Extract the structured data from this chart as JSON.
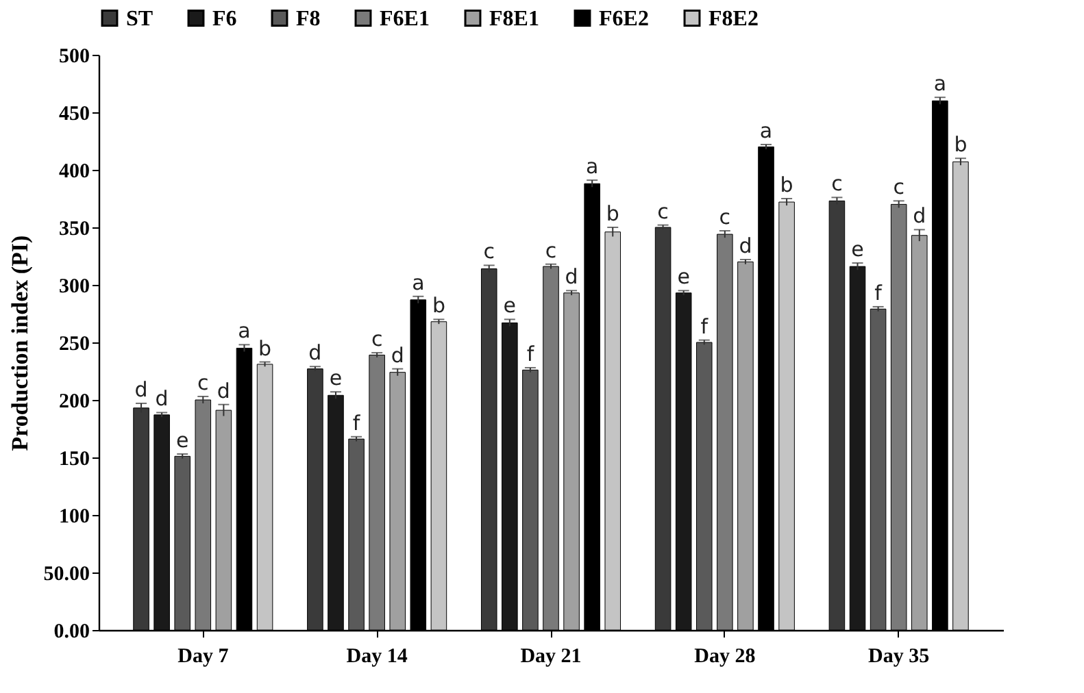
{
  "chart_data": {
    "type": "bar",
    "ylabel": "Production index (PI)",
    "categories": [
      "Day 7",
      "Day 14",
      "Day 21",
      "Day 28",
      "Day 35"
    ],
    "series": [
      {
        "name": "ST",
        "color": "#3a3a3a",
        "values": [
          193,
          227,
          314,
          350,
          373
        ],
        "errors": [
          4,
          2,
          3,
          2,
          3
        ],
        "value_labels": [
          "d",
          "d",
          "c",
          "c",
          "c"
        ]
      },
      {
        "name": "F6",
        "color": "#1a1a1a",
        "values": [
          187,
          204,
          267,
          293,
          316
        ],
        "errors": [
          2,
          3,
          3,
          2,
          3
        ],
        "value_labels": [
          "d",
          "e",
          "e",
          "e",
          "e"
        ]
      },
      {
        "name": "F8",
        "color": "#5a5a5a",
        "values": [
          151,
          166,
          226,
          250,
          279
        ],
        "errors": [
          2,
          2,
          2,
          2,
          2
        ],
        "value_labels": [
          "e",
          "f",
          "f",
          "f",
          "f"
        ]
      },
      {
        "name": "F6E1",
        "color": "#7a7a7a",
        "values": [
          200,
          239,
          316,
          344,
          370
        ],
        "errors": [
          3,
          2,
          2,
          3,
          3
        ],
        "value_labels": [
          "c",
          "c",
          "c",
          "c",
          "c"
        ]
      },
      {
        "name": "F8E1",
        "color": "#a0a0a0",
        "values": [
          191,
          224,
          293,
          320,
          343
        ],
        "errors": [
          5,
          3,
          2,
          2,
          5
        ],
        "value_labels": [
          "d",
          "d",
          "d",
          "d",
          "d"
        ]
      },
      {
        "name": "F6E2",
        "color": "#000000",
        "values": [
          245,
          287,
          388,
          420,
          460
        ],
        "errors": [
          3,
          3,
          3,
          2,
          3
        ],
        "value_labels": [
          "a",
          "a",
          "a",
          "a",
          "a"
        ]
      },
      {
        "name": "F8E2",
        "color": "#c4c4c4",
        "values": [
          231,
          268,
          346,
          372,
          407
        ],
        "errors": [
          2,
          2,
          4,
          3,
          3
        ],
        "value_labels": [
          "b",
          "b",
          "b",
          "b",
          "b"
        ]
      }
    ],
    "ylim": [
      0,
      500
    ],
    "yticks": [
      {
        "value": 0,
        "label": "0.00"
      },
      {
        "value": 50,
        "label": "50.00"
      },
      100,
      150,
      200,
      250,
      300,
      350,
      400,
      450,
      500
    ],
    "grid": false,
    "legend": "top"
  }
}
